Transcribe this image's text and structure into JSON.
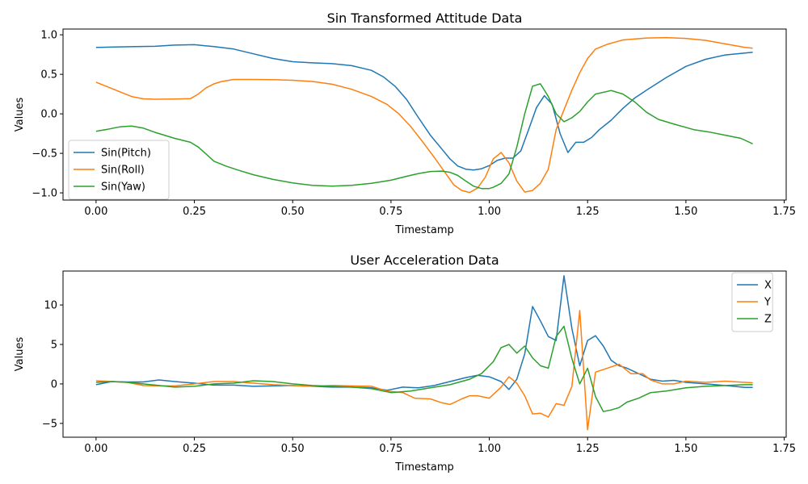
{
  "chart_data": [
    {
      "type": "line",
      "title": "Sin Transformed Attitude Data",
      "xlabel": "Timestamp",
      "ylabel": "Values",
      "xlim": [
        -0.084,
        1.755
      ],
      "ylim": [
        -1.091,
        1.073
      ],
      "xticks": [
        0.0,
        0.25,
        0.5,
        0.75,
        1.0,
        1.25,
        1.5,
        1.75
      ],
      "xtick_labels": [
        "0.00",
        "0.25",
        "0.50",
        "0.75",
        "1.00",
        "1.25",
        "1.50",
        "1.75"
      ],
      "yticks": [
        -1.0,
        -0.5,
        0.0,
        0.5,
        1.0
      ],
      "ytick_labels": [
        "−1.0",
        "−0.5",
        "0.0",
        "0.5",
        "1.0"
      ],
      "grid": false,
      "legend": "lower-left",
      "series": [
        {
          "name": "Sin(Pitch)",
          "color": "#1f77b4",
          "x": [
            0.0,
            0.05,
            0.1,
            0.15,
            0.2,
            0.25,
            0.3,
            0.35,
            0.4,
            0.45,
            0.5,
            0.55,
            0.6,
            0.65,
            0.7,
            0.73,
            0.76,
            0.79,
            0.82,
            0.85,
            0.88,
            0.9,
            0.92,
            0.94,
            0.96,
            0.98,
            1.0,
            1.02,
            1.04,
            1.06,
            1.08,
            1.1,
            1.12,
            1.14,
            1.16,
            1.18,
            1.2,
            1.22,
            1.24,
            1.26,
            1.28,
            1.31,
            1.34,
            1.37,
            1.4,
            1.45,
            1.5,
            1.55,
            1.6,
            1.65,
            1.67
          ],
          "y": [
            0.84,
            0.845,
            0.85,
            0.855,
            0.87,
            0.875,
            0.85,
            0.82,
            0.76,
            0.7,
            0.66,
            0.645,
            0.635,
            0.61,
            0.55,
            0.47,
            0.35,
            0.18,
            -0.05,
            -0.27,
            -0.45,
            -0.57,
            -0.66,
            -0.7,
            -0.71,
            -0.695,
            -0.655,
            -0.59,
            -0.56,
            -0.56,
            -0.47,
            -0.2,
            0.08,
            0.23,
            0.12,
            -0.25,
            -0.49,
            -0.36,
            -0.36,
            -0.3,
            -0.2,
            -0.08,
            0.07,
            0.2,
            0.3,
            0.46,
            0.6,
            0.69,
            0.745,
            0.77,
            0.78
          ]
        },
        {
          "name": "Sin(Roll)",
          "color": "#ff7f0e",
          "x": [
            0.0,
            0.03,
            0.06,
            0.09,
            0.12,
            0.15,
            0.2,
            0.24,
            0.26,
            0.28,
            0.3,
            0.32,
            0.35,
            0.4,
            0.45,
            0.5,
            0.55,
            0.6,
            0.65,
            0.7,
            0.74,
            0.77,
            0.8,
            0.83,
            0.86,
            0.89,
            0.91,
            0.93,
            0.95,
            0.97,
            0.99,
            1.01,
            1.03,
            1.05,
            1.07,
            1.09,
            1.11,
            1.13,
            1.15,
            1.17,
            1.19,
            1.21,
            1.23,
            1.25,
            1.27,
            1.3,
            1.34,
            1.4,
            1.45,
            1.5,
            1.55,
            1.6,
            1.65,
            1.67
          ],
          "y": [
            0.4,
            0.34,
            0.28,
            0.22,
            0.19,
            0.185,
            0.188,
            0.192,
            0.25,
            0.33,
            0.38,
            0.41,
            0.435,
            0.435,
            0.432,
            0.425,
            0.41,
            0.375,
            0.31,
            0.22,
            0.12,
            0.0,
            -0.16,
            -0.35,
            -0.55,
            -0.76,
            -0.9,
            -0.97,
            -0.995,
            -0.94,
            -0.8,
            -0.57,
            -0.49,
            -0.62,
            -0.85,
            -0.99,
            -0.97,
            -0.88,
            -0.7,
            -0.2,
            0.05,
            0.3,
            0.52,
            0.7,
            0.82,
            0.88,
            0.935,
            0.96,
            0.965,
            0.955,
            0.93,
            0.885,
            0.84,
            0.83
          ]
        },
        {
          "name": "Sin(Yaw)",
          "color": "#2ca02c",
          "x": [
            0.0,
            0.03,
            0.06,
            0.09,
            0.12,
            0.15,
            0.2,
            0.24,
            0.26,
            0.28,
            0.3,
            0.33,
            0.36,
            0.4,
            0.45,
            0.5,
            0.55,
            0.6,
            0.65,
            0.7,
            0.75,
            0.79,
            0.82,
            0.85,
            0.88,
            0.9,
            0.92,
            0.94,
            0.96,
            0.98,
            1.0,
            1.01,
            1.03,
            1.05,
            1.07,
            1.09,
            1.11,
            1.13,
            1.15,
            1.17,
            1.19,
            1.21,
            1.23,
            1.25,
            1.27,
            1.31,
            1.34,
            1.37,
            1.4,
            1.43,
            1.47,
            1.52,
            1.56,
            1.6,
            1.64,
            1.67
          ],
          "y": [
            -0.22,
            -0.195,
            -0.165,
            -0.155,
            -0.18,
            -0.235,
            -0.31,
            -0.36,
            -0.42,
            -0.51,
            -0.6,
            -0.66,
            -0.71,
            -0.77,
            -0.83,
            -0.875,
            -0.905,
            -0.915,
            -0.905,
            -0.88,
            -0.84,
            -0.79,
            -0.755,
            -0.73,
            -0.725,
            -0.74,
            -0.78,
            -0.85,
            -0.915,
            -0.945,
            -0.945,
            -0.93,
            -0.88,
            -0.76,
            -0.42,
            0.0,
            0.35,
            0.38,
            0.22,
            0.0,
            -0.1,
            -0.05,
            0.03,
            0.15,
            0.25,
            0.295,
            0.25,
            0.15,
            0.02,
            -0.07,
            -0.13,
            -0.2,
            -0.23,
            -0.27,
            -0.31,
            -0.38
          ]
        }
      ]
    },
    {
      "type": "line",
      "title": "User Acceleration Data",
      "xlabel": "Timestamp",
      "ylabel": "Values",
      "xlim": [
        -0.084,
        1.755
      ],
      "ylim": [
        -6.75,
        14.3
      ],
      "xticks": [
        0.0,
        0.25,
        0.5,
        0.75,
        1.0,
        1.25,
        1.5,
        1.75
      ],
      "xtick_labels": [
        "0.00",
        "0.25",
        "0.50",
        "0.75",
        "1.00",
        "1.25",
        "1.50",
        "1.75"
      ],
      "yticks": [
        -5,
        0,
        5,
        10
      ],
      "ytick_labels": [
        "−5",
        "0",
        "5",
        "10"
      ],
      "grid": false,
      "legend": "upper-right",
      "series": [
        {
          "name": "X",
          "color": "#1f77b4",
          "x": [
            0.0,
            0.04,
            0.08,
            0.12,
            0.16,
            0.2,
            0.25,
            0.3,
            0.35,
            0.4,
            0.45,
            0.5,
            0.55,
            0.6,
            0.65,
            0.7,
            0.74,
            0.78,
            0.82,
            0.86,
            0.9,
            0.94,
            0.97,
            1.0,
            1.03,
            1.05,
            1.07,
            1.09,
            1.11,
            1.13,
            1.15,
            1.17,
            1.19,
            1.21,
            1.23,
            1.25,
            1.27,
            1.29,
            1.31,
            1.33,
            1.35,
            1.38,
            1.41,
            1.44,
            1.47,
            1.5,
            1.55,
            1.6,
            1.65,
            1.67
          ],
          "y": [
            -0.1,
            0.3,
            0.25,
            0.25,
            0.5,
            0.3,
            0.1,
            -0.15,
            -0.15,
            -0.3,
            -0.25,
            -0.2,
            -0.3,
            -0.4,
            -0.4,
            -0.5,
            -0.8,
            -0.4,
            -0.5,
            -0.2,
            0.3,
            0.8,
            1.1,
            0.9,
            0.3,
            -0.7,
            0.6,
            3.8,
            9.8,
            8.0,
            6.0,
            5.5,
            13.7,
            7.0,
            2.3,
            5.5,
            6.1,
            4.8,
            3.0,
            2.3,
            2.0,
            1.3,
            0.6,
            0.35,
            0.45,
            0.2,
            0.0,
            -0.2,
            -0.45,
            -0.45
          ]
        },
        {
          "name": "Y",
          "color": "#ff7f0e",
          "x": [
            0.0,
            0.04,
            0.08,
            0.12,
            0.16,
            0.2,
            0.25,
            0.3,
            0.35,
            0.4,
            0.45,
            0.5,
            0.55,
            0.6,
            0.65,
            0.7,
            0.74,
            0.78,
            0.81,
            0.85,
            0.88,
            0.9,
            0.93,
            0.95,
            0.97,
            1.0,
            1.03,
            1.05,
            1.07,
            1.09,
            1.11,
            1.13,
            1.15,
            1.17,
            1.19,
            1.21,
            1.23,
            1.25,
            1.27,
            1.3,
            1.33,
            1.36,
            1.39,
            1.41,
            1.44,
            1.47,
            1.5,
            1.55,
            1.6,
            1.65,
            1.67
          ],
          "y": [
            0.4,
            0.3,
            0.2,
            -0.2,
            -0.25,
            -0.25,
            0.0,
            0.3,
            0.3,
            0.1,
            -0.1,
            -0.2,
            -0.3,
            -0.2,
            -0.25,
            -0.3,
            -0.9,
            -1.1,
            -1.8,
            -1.9,
            -2.4,
            -2.6,
            -1.9,
            -1.5,
            -1.5,
            -1.8,
            -0.4,
            0.9,
            0.1,
            -1.5,
            -3.8,
            -3.7,
            -4.2,
            -2.5,
            -2.7,
            -0.3,
            9.3,
            -5.8,
            1.5,
            2.0,
            2.5,
            1.3,
            1.3,
            0.5,
            0.0,
            0.0,
            0.35,
            0.2,
            0.35,
            0.2,
            0.15
          ]
        },
        {
          "name": "Z",
          "color": "#2ca02c",
          "x": [
            0.0,
            0.04,
            0.08,
            0.12,
            0.16,
            0.2,
            0.25,
            0.3,
            0.35,
            0.4,
            0.45,
            0.5,
            0.55,
            0.6,
            0.65,
            0.7,
            0.75,
            0.8,
            0.85,
            0.9,
            0.95,
            0.98,
            1.01,
            1.03,
            1.05,
            1.07,
            1.09,
            1.11,
            1.13,
            1.15,
            1.17,
            1.19,
            1.21,
            1.23,
            1.25,
            1.27,
            1.29,
            1.31,
            1.33,
            1.35,
            1.38,
            1.41,
            1.45,
            1.5,
            1.55,
            1.6,
            1.65,
            1.67
          ],
          "y": [
            0.2,
            0.3,
            0.2,
            0.0,
            -0.2,
            -0.4,
            -0.3,
            0.0,
            0.1,
            0.4,
            0.3,
            0.0,
            -0.2,
            -0.3,
            -0.4,
            -0.6,
            -1.1,
            -0.9,
            -0.5,
            -0.1,
            0.6,
            1.3,
            2.8,
            4.6,
            5.0,
            3.9,
            4.8,
            3.3,
            2.3,
            2.0,
            6.0,
            7.3,
            3.2,
            0.0,
            2.0,
            -1.6,
            -3.5,
            -3.3,
            -3.0,
            -2.3,
            -1.8,
            -1.1,
            -0.9,
            -0.5,
            -0.3,
            -0.2,
            -0.1,
            -0.1
          ]
        }
      ]
    }
  ]
}
